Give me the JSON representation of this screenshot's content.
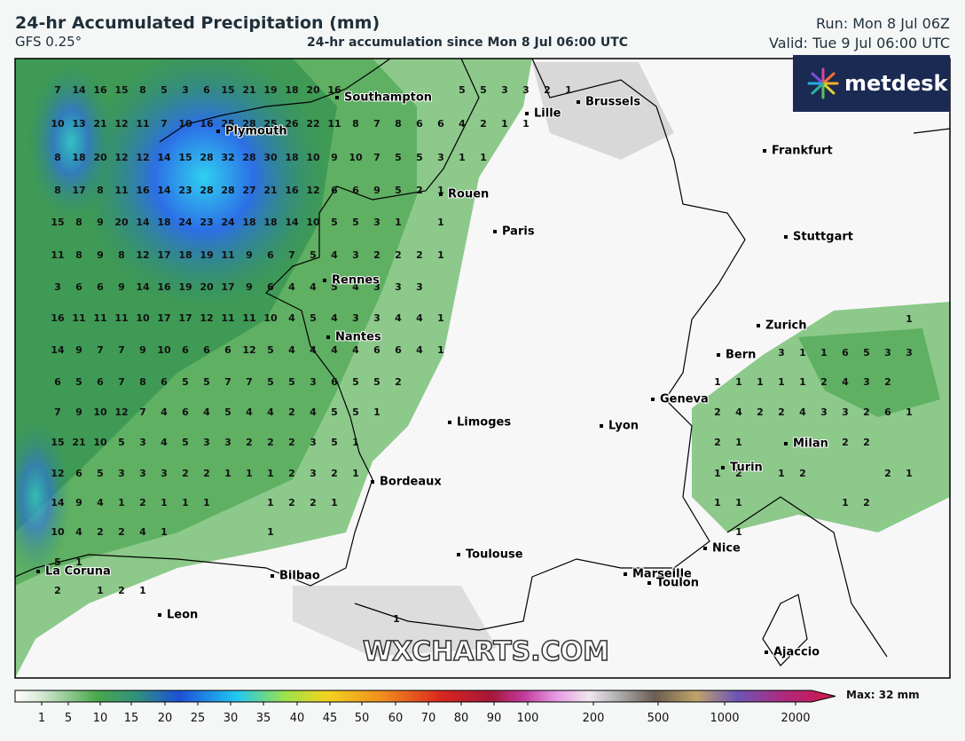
{
  "header": {
    "title": "24-hr Accumulated Precipitation (mm)",
    "model": "GFS 0.25°",
    "subtitle": "24-hr accumulation since Mon 8 Jul 06:00 UTC",
    "run": "Run: Mon 8 Jul 06Z",
    "valid": "Valid: Tue 9 Jul 06:00 UTC"
  },
  "logo": "metdesk",
  "watermark": "WXCHARTS.COM",
  "cities": [
    "Southampton",
    "Brussels",
    "Lille",
    "Plymouth",
    "Frankfurt",
    "Rouen",
    "Paris",
    "Stuttgart",
    "Rennes",
    "Zurich",
    "Nantes",
    "Bern",
    "Geneva",
    "Limoges",
    "Lyon",
    "Milan",
    "Turin",
    "Bordeaux",
    "Toulouse",
    "Nice",
    "Marseille",
    "Toulon",
    "La Coruna",
    "Bilbao",
    "Leon",
    "Ajaccio"
  ],
  "grid_west": [
    [
      7,
      14,
      16,
      15,
      8,
      5,
      3,
      6,
      15,
      21,
      19,
      18,
      20,
      16,
      null,
      null,
      null,
      null,
      null,
      5,
      5,
      3,
      3,
      2,
      1
    ],
    [
      10,
      13,
      21,
      12,
      11,
      7,
      10,
      16,
      25,
      28,
      25,
      26,
      22,
      11,
      8,
      7,
      8,
      6,
      6,
      4,
      2,
      1,
      1
    ],
    [
      8,
      18,
      20,
      12,
      12,
      14,
      15,
      28,
      32,
      28,
      30,
      18,
      10,
      9,
      10,
      7,
      5,
      5,
      3,
      1,
      1
    ],
    [
      8,
      17,
      8,
      11,
      16,
      14,
      23,
      28,
      28,
      27,
      21,
      16,
      12,
      6,
      6,
      9,
      5,
      2,
      1
    ],
    [
      15,
      8,
      9,
      20,
      14,
      18,
      24,
      23,
      24,
      18,
      18,
      14,
      10,
      5,
      5,
      3,
      1,
      null,
      1
    ],
    [
      11,
      8,
      9,
      8,
      12,
      17,
      18,
      19,
      11,
      9,
      6,
      7,
      5,
      4,
      3,
      2,
      2,
      2,
      1
    ],
    [
      3,
      6,
      6,
      9,
      14,
      16,
      19,
      20,
      17,
      9,
      6,
      4,
      4,
      5,
      4,
      3,
      3,
      3
    ],
    [
      16,
      11,
      11,
      11,
      10,
      17,
      17,
      12,
      11,
      11,
      10,
      4,
      5,
      4,
      3,
      3,
      4,
      4,
      1
    ],
    [
      14,
      9,
      7,
      7,
      9,
      10,
      6,
      6,
      6,
      12,
      5,
      4,
      4,
      4,
      4,
      6,
      6,
      4,
      1
    ],
    [
      6,
      5,
      6,
      7,
      8,
      6,
      5,
      5,
      7,
      7,
      5,
      5,
      3,
      6,
      5,
      5,
      2
    ],
    [
      7,
      9,
      10,
      12,
      7,
      4,
      6,
      4,
      5,
      4,
      4,
      2,
      4,
      5,
      5,
      1
    ],
    [
      15,
      21,
      10,
      5,
      3,
      4,
      5,
      3,
      3,
      2,
      2,
      2,
      3,
      5,
      1
    ],
    [
      12,
      6,
      5,
      3,
      3,
      3,
      2,
      2,
      1,
      1,
      1,
      2,
      3,
      2,
      1
    ],
    [
      14,
      9,
      4,
      1,
      2,
      1,
      1,
      1,
      null,
      null,
      1,
      2,
      2,
      1
    ],
    [
      10,
      4,
      2,
      2,
      4,
      1,
      null,
      null,
      null,
      null,
      1
    ],
    [
      5,
      1
    ],
    [
      2,
      null,
      1,
      2,
      1
    ]
  ],
  "grid_alps": [
    [
      null,
      null,
      null,
      null,
      null,
      null,
      null,
      null,
      null,
      1
    ],
    [
      null,
      null,
      null,
      3,
      1,
      1,
      6,
      5,
      3,
      3
    ],
    [
      1,
      1,
      1,
      1,
      1,
      2,
      4,
      3,
      2
    ],
    [
      2,
      4,
      2,
      2,
      4,
      3,
      3,
      2,
      6,
      1
    ],
    [
      2,
      1,
      null,
      null,
      null,
      null,
      2,
      2
    ],
    [
      1,
      2,
      null,
      1,
      2,
      null,
      null,
      null,
      2,
      1
    ],
    [
      1,
      1,
      null,
      null,
      null,
      null,
      1,
      2
    ],
    [
      null,
      1
    ]
  ],
  "isolated": [
    1
  ],
  "colorbar": {
    "ticks": [
      1,
      5,
      10,
      15,
      20,
      25,
      30,
      35,
      40,
      45,
      50,
      60,
      70,
      80,
      90,
      100,
      200,
      500,
      1000,
      2000
    ],
    "max_label": "Max: 32 mm"
  }
}
